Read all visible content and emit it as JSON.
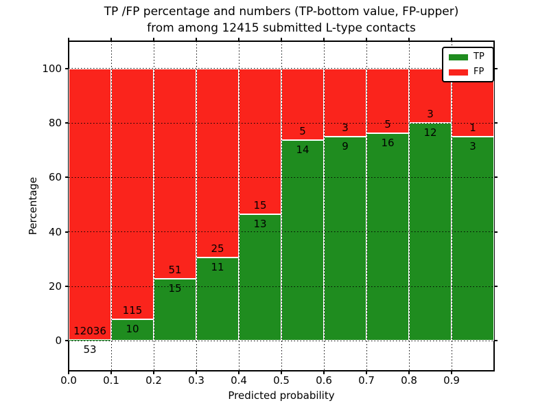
{
  "chart_data": {
    "type": "bar",
    "stacked": true,
    "title_line1": "TP /FP percentage and numbers (TP-bottom value, FP-upper)",
    "title_line2": "from among 12415 submitted L-type contacts",
    "total_submitted": 12415,
    "xlabel": "Predicted probability",
    "ylabel": "Percentage",
    "categories": [
      "0.0-0.1",
      "0.1-0.2",
      "0.2-0.3",
      "0.3-0.4",
      "0.4-0.5",
      "0.5-0.6",
      "0.6-0.7",
      "0.7-0.8",
      "0.8-0.9",
      "0.9-1.0"
    ],
    "x_tick_labels": [
      "0.0",
      "0.1",
      "0.2",
      "0.3",
      "0.4",
      "0.5",
      "0.6",
      "0.7",
      "0.8",
      "0.9"
    ],
    "y_tick_labels": [
      "0",
      "20",
      "40",
      "60",
      "80",
      "100"
    ],
    "y_tick_values": [
      0,
      20,
      40,
      60,
      80,
      100
    ],
    "xlim": [
      0.0,
      1.0
    ],
    "ylim": [
      -11,
      110
    ],
    "bar_width": 0.1,
    "grid": true,
    "grid_style": "dotted",
    "legend_position": "upper right",
    "bar_edge_color": "#ffffff",
    "background_color": "#ffffff",
    "series": [
      {
        "name": "TP",
        "color": "#1f8c1f",
        "counts": [
          53,
          10,
          15,
          11,
          13,
          14,
          9,
          16,
          12,
          3
        ]
      },
      {
        "name": "FP",
        "color": "#fa241c",
        "counts": [
          12036,
          115,
          51,
          25,
          15,
          5,
          3,
          5,
          3,
          1
        ]
      }
    ],
    "tp_percentages": [
      0.44,
      8.0,
      22.73,
      30.56,
      46.43,
      73.68,
      75.0,
      76.19,
      80.0,
      75.0
    ]
  }
}
